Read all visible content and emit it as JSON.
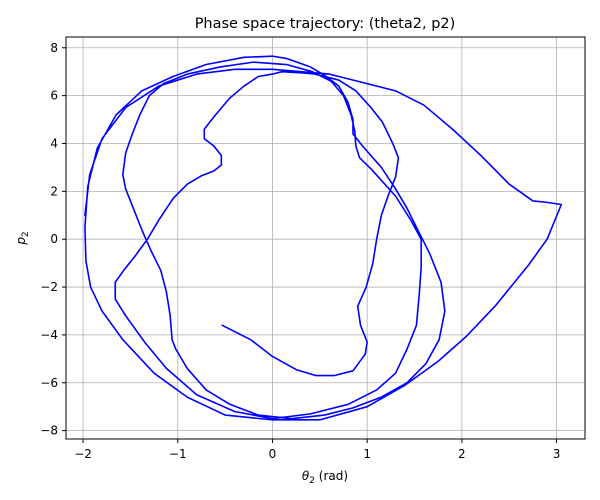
{
  "chart_data": {
    "type": "line",
    "title": "Phase space trajectory: (theta2, p2)",
    "xlabel_symbol": "θ",
    "xlabel_sub": "2",
    "xlabel_unit": " (rad)",
    "ylabel_symbol": "p",
    "ylabel_sub": "2",
    "xlim": [
      -2.18,
      3.3
    ],
    "ylim": [
      -8.35,
      8.45
    ],
    "xticks": [
      -2,
      -1,
      0,
      1,
      2,
      3
    ],
    "yticks": [
      -8,
      -6,
      -4,
      -2,
      0,
      2,
      4,
      6,
      8
    ],
    "grid": true,
    "colors": {
      "line": "#0000ff",
      "grid": "#b0b0b0",
      "axes": "#000000"
    },
    "series": [
      {
        "points": [
          [
            -0.53,
            -3.6
          ],
          [
            -0.23,
            -4.2
          ],
          [
            0.0,
            -4.9
          ],
          [
            0.25,
            -5.45
          ],
          [
            0.46,
            -5.7
          ],
          [
            0.65,
            -5.7
          ],
          [
            0.85,
            -5.5
          ],
          [
            0.98,
            -4.8
          ],
          [
            1.0,
            -4.3
          ],
          [
            0.93,
            -3.6
          ],
          [
            0.9,
            -2.8
          ],
          [
            0.99,
            -2.0
          ],
          [
            1.06,
            -1.0
          ],
          [
            1.1,
            0.0
          ],
          [
            1.15,
            1.0
          ],
          [
            1.22,
            1.8
          ],
          [
            1.3,
            2.6
          ],
          [
            1.33,
            3.4
          ],
          [
            1.27,
            4.0
          ],
          [
            1.16,
            4.9
          ],
          [
            1.04,
            5.5
          ],
          [
            0.88,
            6.2
          ],
          [
            0.7,
            6.65
          ],
          [
            0.45,
            6.9
          ],
          [
            0.32,
            6.95
          ],
          [
            0.1,
            7.0
          ],
          [
            0.0,
            6.9
          ],
          [
            -0.15,
            6.8
          ],
          [
            -0.3,
            6.4
          ],
          [
            -0.45,
            5.9
          ],
          [
            -0.6,
            5.2
          ],
          [
            -0.72,
            4.6
          ],
          [
            -0.72,
            4.2
          ],
          [
            -0.62,
            3.9
          ],
          [
            -0.54,
            3.5
          ],
          [
            -0.54,
            3.1
          ],
          [
            -0.62,
            2.85
          ],
          [
            -0.75,
            2.65
          ],
          [
            -0.9,
            2.3
          ],
          [
            -1.05,
            1.7
          ],
          [
            -1.2,
            0.8
          ],
          [
            -1.32,
            0.0
          ],
          [
            -1.45,
            -0.7
          ],
          [
            -1.57,
            -1.3
          ],
          [
            -1.66,
            -1.8
          ],
          [
            -1.66,
            -2.5
          ],
          [
            -1.55,
            -3.2
          ],
          [
            -1.35,
            -4.3
          ],
          [
            -1.12,
            -5.4
          ],
          [
            -0.8,
            -6.5
          ],
          [
            -0.4,
            -7.2
          ],
          [
            0.0,
            -7.5
          ],
          [
            0.4,
            -7.3
          ],
          [
            0.8,
            -6.9
          ],
          [
            1.1,
            -6.3
          ],
          [
            1.3,
            -5.6
          ],
          [
            1.42,
            -4.6
          ],
          [
            1.52,
            -3.6
          ],
          [
            1.55,
            -2.3
          ],
          [
            1.57,
            -1.2
          ],
          [
            1.57,
            0.0
          ],
          [
            1.46,
            0.8
          ],
          [
            1.3,
            1.8
          ],
          [
            1.05,
            2.9
          ],
          [
            0.92,
            3.4
          ],
          [
            0.88,
            3.9
          ],
          [
            0.87,
            4.5
          ],
          [
            0.83,
            5.2
          ],
          [
            0.75,
            6.0
          ],
          [
            0.62,
            6.6
          ],
          [
            0.42,
            7.0
          ],
          [
            0.15,
            7.3
          ],
          [
            -0.2,
            7.4
          ],
          [
            -0.55,
            7.2
          ],
          [
            -0.9,
            6.9
          ],
          [
            -1.15,
            6.5
          ],
          [
            -1.3,
            6.0
          ],
          [
            -1.4,
            5.2
          ],
          [
            -1.48,
            4.4
          ],
          [
            -1.55,
            3.6
          ],
          [
            -1.58,
            2.7
          ],
          [
            -1.55,
            2.1
          ],
          [
            -1.47,
            1.3
          ],
          [
            -1.38,
            0.4
          ],
          [
            -1.28,
            -0.5
          ],
          [
            -1.18,
            -1.3
          ],
          [
            -1.12,
            -2.2
          ],
          [
            -1.08,
            -3.2
          ],
          [
            -1.06,
            -4.2
          ],
          [
            -1.02,
            -4.6
          ],
          [
            -0.9,
            -5.4
          ],
          [
            -0.7,
            -6.3
          ],
          [
            -0.45,
            -6.9
          ],
          [
            -0.15,
            -7.35
          ],
          [
            0.2,
            -7.5
          ],
          [
            0.55,
            -7.35
          ],
          [
            0.85,
            -7.05
          ],
          [
            1.15,
            -6.6
          ],
          [
            1.42,
            -6.0
          ],
          [
            1.62,
            -5.2
          ],
          [
            1.76,
            -4.2
          ],
          [
            1.82,
            -3.0
          ],
          [
            1.78,
            -1.8
          ],
          [
            1.66,
            -0.6
          ],
          [
            1.52,
            0.5
          ],
          [
            1.42,
            1.3
          ],
          [
            1.3,
            2.1
          ],
          [
            1.15,
            3.0
          ],
          [
            0.95,
            3.9
          ],
          [
            0.85,
            4.4
          ],
          [
            0.85,
            5.0
          ],
          [
            0.8,
            5.7
          ],
          [
            0.7,
            6.4
          ],
          [
            0.55,
            6.85
          ],
          [
            0.4,
            7.2
          ],
          [
            0.15,
            7.55
          ],
          [
            0.0,
            7.65
          ],
          [
            -0.3,
            7.6
          ],
          [
            -0.7,
            7.3
          ],
          [
            -1.05,
            6.8
          ],
          [
            -1.38,
            6.2
          ],
          [
            -1.65,
            5.2
          ],
          [
            -1.85,
            3.8
          ],
          [
            -1.95,
            2.2
          ],
          [
            -1.98,
            0.5
          ],
          [
            -1.97,
            -0.9
          ],
          [
            -1.92,
            -2.0
          ],
          [
            -1.8,
            -3.0
          ],
          [
            -1.58,
            -4.2
          ],
          [
            -1.25,
            -5.6
          ],
          [
            -0.9,
            -6.6
          ],
          [
            -0.5,
            -7.35
          ],
          [
            0.0,
            -7.55
          ],
          [
            0.5,
            -7.55
          ],
          [
            1.0,
            -7.0
          ],
          [
            1.4,
            -6.1
          ],
          [
            1.75,
            -5.1
          ],
          [
            2.05,
            -4.05
          ],
          [
            2.35,
            -2.8
          ],
          [
            2.7,
            -1.1
          ],
          [
            2.9,
            -0.0
          ],
          [
            3.05,
            1.45
          ],
          [
            2.88,
            1.55
          ],
          [
            2.75,
            1.6
          ],
          [
            2.5,
            2.3
          ],
          [
            2.2,
            3.5
          ],
          [
            1.9,
            4.6
          ],
          [
            1.6,
            5.6
          ],
          [
            1.3,
            6.2
          ],
          [
            1.0,
            6.5
          ],
          [
            0.6,
            6.9
          ],
          [
            0.3,
            7.0
          ],
          [
            0.0,
            7.1
          ],
          [
            -0.4,
            7.1
          ],
          [
            -0.8,
            6.9
          ],
          [
            -1.2,
            6.4
          ],
          [
            -1.55,
            5.5
          ],
          [
            -1.8,
            4.2
          ],
          [
            -1.93,
            2.7
          ],
          [
            -1.98,
            1.0
          ]
        ]
      }
    ]
  }
}
